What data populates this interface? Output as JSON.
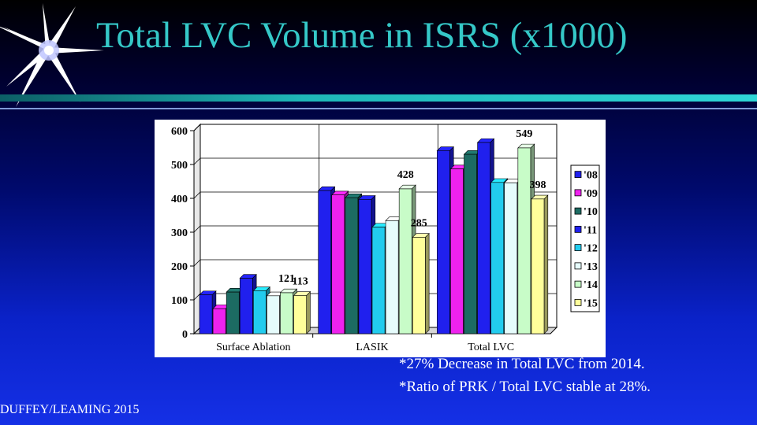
{
  "slide": {
    "title": "Total LVC Volume in ISRS (x1000)",
    "notes": [
      "*27% Decrease in Total LVC from 2014.",
      "*Ratio of PRK / Total LVC stable at 28%."
    ],
    "credit": "DUFFEY/LEAMING 2015"
  },
  "chart_data": {
    "type": "bar",
    "title": "",
    "xlabel": "",
    "ylabel": "",
    "style": "3d",
    "categories": [
      "Surface Ablation",
      "LASIK",
      "Total LVC"
    ],
    "ylim": [
      0,
      600
    ],
    "yticks": [
      0,
      100,
      200,
      300,
      400,
      500,
      600
    ],
    "grid": true,
    "legend_position": "right",
    "series": [
      {
        "name": "'08",
        "color": "#2020ee",
        "values": [
          115,
          423,
          541
        ]
      },
      {
        "name": "'09",
        "color": "#ee22ee",
        "values": [
          74,
          410,
          487
        ]
      },
      {
        "name": "'10",
        "color": "#1c6b62",
        "values": [
          123,
          402,
          530
        ]
      },
      {
        "name": "'11",
        "color": "#2020ee",
        "values": [
          164,
          397,
          565
        ]
      },
      {
        "name": "'12",
        "color": "#22ccee",
        "values": [
          127,
          315,
          447
        ]
      },
      {
        "name": "'13",
        "color": "#e6fcfc",
        "values": [
          112,
          334,
          446
        ]
      },
      {
        "name": "'14",
        "color": "#c8fcc8",
        "values": [
          121,
          428,
          549
        ]
      },
      {
        "name": "'15",
        "color": "#ffff9a",
        "values": [
          113,
          285,
          398
        ]
      }
    ],
    "data_labels": [
      {
        "series": 6,
        "category": 0,
        "text": "121"
      },
      {
        "series": 7,
        "category": 0,
        "text": "113"
      },
      {
        "series": 6,
        "category": 1,
        "text": "428"
      },
      {
        "series": 7,
        "category": 1,
        "text": "285"
      },
      {
        "series": 6,
        "category": 2,
        "text": "549"
      },
      {
        "series": 7,
        "category": 2,
        "text": "398"
      }
    ]
  }
}
